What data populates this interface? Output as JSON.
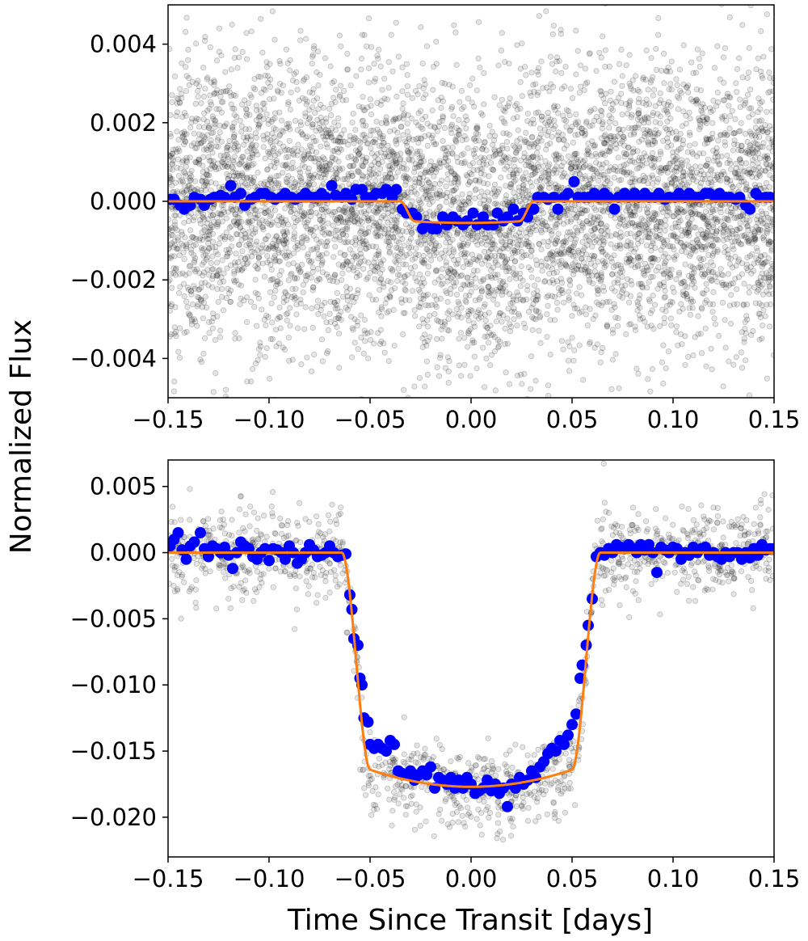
{
  "figure": {
    "ylabel": "Normalized Flux",
    "xlabel": "Time Since Transit [days]"
  },
  "chart_data": [
    {
      "type": "scatter",
      "panel": "top",
      "xlim": [
        -0.15,
        0.15
      ],
      "ylim": [
        -0.005,
        0.005
      ],
      "grid": false,
      "legend": "none",
      "x_ticks": [
        -0.15,
        -0.1,
        -0.05,
        0.0,
        0.05,
        0.1,
        0.15
      ],
      "x_tick_labels": [
        "−0.15",
        "−0.10",
        "−0.05",
        "0.00",
        "0.05",
        "0.10",
        "0.15"
      ],
      "y_ticks": [
        0.004,
        0.002,
        0.0,
        -0.002,
        -0.004
      ],
      "y_tick_labels": [
        "0.004",
        "0.002",
        "0.000",
        "−0.002",
        "−0.004"
      ],
      "colors": {
        "raw": "#000000",
        "binned": "#0000ff",
        "model": "#ff7f0e"
      },
      "raw_scatter": {
        "n_points": 6000,
        "sigma": 0.0018
      },
      "model": {
        "transit_start": -0.035,
        "transit_end": 0.031,
        "ingress_duration": 0.007,
        "depth": 0.00055
      },
      "binned": [
        [
          -0.149,
          5e-05
        ],
        [
          -0.147,
          5e-05
        ],
        [
          -0.144,
          -0.0001
        ],
        [
          -0.142,
          -0.0002
        ],
        [
          -0.139,
          -0.0001
        ],
        [
          -0.137,
          0.0001
        ],
        [
          -0.134,
          5e-05
        ],
        [
          -0.132,
          -0.0001
        ],
        [
          -0.129,
          5e-05
        ],
        [
          -0.127,
          0.0001
        ],
        [
          -0.124,
          0.00015
        ],
        [
          -0.122,
          0.0001
        ],
        [
          -0.119,
          0.0004
        ],
        [
          -0.117,
          0.0001
        ],
        [
          -0.114,
          0.0002
        ],
        [
          -0.112,
          -0.0001
        ],
        [
          -0.109,
          5e-05
        ],
        [
          -0.107,
          0.0001
        ],
        [
          -0.104,
          0.0002
        ],
        [
          -0.102,
          0.0002
        ],
        [
          -0.099,
          0.0001
        ],
        [
          -0.097,
          5e-05
        ],
        [
          -0.094,
          0.0001
        ],
        [
          -0.092,
          0.0002
        ],
        [
          -0.089,
          0.0001
        ],
        [
          -0.087,
          5e-05
        ],
        [
          -0.084,
          0.0001
        ],
        [
          -0.082,
          0.0002
        ],
        [
          -0.079,
          0.0001
        ],
        [
          -0.077,
          0.0001
        ],
        [
          -0.074,
          0.0002
        ],
        [
          -0.072,
          0.0001
        ],
        [
          -0.069,
          0.0004
        ],
        [
          -0.067,
          0.00015
        ],
        [
          -0.064,
          0.0001
        ],
        [
          -0.062,
          0.0002
        ],
        [
          -0.059,
          5e-05
        ],
        [
          -0.057,
          0.0003
        ],
        [
          -0.054,
          0.0003
        ],
        [
          -0.052,
          0.0001
        ],
        [
          -0.049,
          0.0001
        ],
        [
          -0.047,
          0.0002
        ],
        [
          -0.044,
          0.0002
        ],
        [
          -0.042,
          0.0003
        ],
        [
          -0.039,
          0.0001
        ],
        [
          -0.037,
          0.0003
        ],
        [
          -0.034,
          -0.0002
        ],
        [
          -0.032,
          -0.0003
        ],
        [
          -0.029,
          -0.0003
        ],
        [
          -0.027,
          -0.0004
        ],
        [
          -0.024,
          -0.0007
        ],
        [
          -0.022,
          -0.0006
        ],
        [
          -0.019,
          -0.0007
        ],
        [
          -0.017,
          -0.0007
        ],
        [
          -0.014,
          -0.0004
        ],
        [
          -0.012,
          -0.0006
        ],
        [
          -0.009,
          -0.0004
        ],
        [
          -0.007,
          -0.0005
        ],
        [
          -0.004,
          -0.0006
        ],
        [
          -0.002,
          -0.0005
        ],
        [
          0.001,
          -0.0003
        ],
        [
          0.003,
          -0.0006
        ],
        [
          0.006,
          -0.0004
        ],
        [
          0.008,
          -0.0006
        ],
        [
          0.011,
          -0.0006
        ],
        [
          0.013,
          -0.0003
        ],
        [
          0.016,
          -0.0005
        ],
        [
          0.018,
          -0.0004
        ],
        [
          0.021,
          -0.0002
        ],
        [
          0.023,
          -0.0005
        ],
        [
          0.026,
          -0.0003
        ],
        [
          0.028,
          -0.0004
        ],
        [
          0.031,
          -0.0002
        ],
        [
          0.033,
          0.0001
        ],
        [
          0.036,
          0.0001
        ],
        [
          0.038,
          5e-05
        ],
        [
          0.041,
          0.0001
        ],
        [
          0.043,
          -0.0002
        ],
        [
          0.046,
          0.0001
        ],
        [
          0.048,
          0.0002
        ],
        [
          0.051,
          0.0005
        ],
        [
          0.053,
          0.0001
        ],
        [
          0.056,
          0.0001
        ],
        [
          0.058,
          0.0001
        ],
        [
          0.061,
          0.0002
        ],
        [
          0.063,
          0.0001
        ],
        [
          0.066,
          0.0002
        ],
        [
          0.068,
          0.0001
        ],
        [
          0.071,
          -0.0002
        ],
        [
          0.073,
          0.0001
        ],
        [
          0.076,
          0.0002
        ],
        [
          0.078,
          0.0001
        ],
        [
          0.081,
          0.0002
        ],
        [
          0.083,
          0.0001
        ],
        [
          0.086,
          0.0002
        ],
        [
          0.088,
          0.0001
        ],
        [
          0.091,
          0.0001
        ],
        [
          0.093,
          0.0002
        ],
        [
          0.096,
          5e-05
        ],
        [
          0.098,
          0.0001
        ],
        [
          0.101,
          0.0001
        ],
        [
          0.103,
          0.0002
        ],
        [
          0.106,
          0.0001
        ],
        [
          0.108,
          0.0002
        ],
        [
          0.111,
          0.0001
        ],
        [
          0.113,
          0.0001
        ],
        [
          0.116,
          0.0002
        ],
        [
          0.118,
          0.0002
        ],
        [
          0.121,
          0.0001
        ],
        [
          0.123,
          0.0002
        ],
        [
          0.126,
          0.0001
        ],
        [
          0.128,
          0.0001
        ],
        [
          0.131,
          5e-05
        ],
        [
          0.133,
          0.0001
        ],
        [
          0.136,
          -0.0001
        ],
        [
          0.138,
          -0.0002
        ],
        [
          0.141,
          0.0002
        ],
        [
          0.143,
          0.0001
        ],
        [
          0.146,
          0.0001
        ],
        [
          0.148,
          0.0001
        ]
      ]
    },
    {
      "type": "scatter",
      "panel": "bottom",
      "xlim": [
        -0.15,
        0.15
      ],
      "ylim": [
        -0.023,
        0.007
      ],
      "grid": false,
      "legend": "none",
      "x_ticks": [
        -0.15,
        -0.1,
        -0.05,
        0.0,
        0.05,
        0.1,
        0.15
      ],
      "x_tick_labels": [
        "−0.15",
        "−0.10",
        "−0.05",
        "0.00",
        "0.05",
        "0.10",
        "0.15"
      ],
      "y_ticks": [
        0.005,
        0.0,
        -0.005,
        -0.01,
        -0.015,
        -0.02
      ],
      "y_tick_labels": [
        "0.005",
        "0.000",
        "−0.005",
        "−0.010",
        "−0.015",
        "−0.020"
      ],
      "colors": {
        "raw": "#000000",
        "binned": "#0000ff",
        "model": "#ff7f0e"
      },
      "raw_scatter": {
        "n_points": 1300,
        "sigma": 0.0017
      },
      "model": {
        "transit_start": -0.064,
        "transit_end": 0.064,
        "ingress_duration": 0.014,
        "depth": 0.0177
      },
      "binned": [
        [
          -0.149,
          0.0005
        ],
        [
          -0.147,
          0.001
        ],
        [
          -0.145,
          0.0015
        ],
        [
          -0.143,
          0.0002
        ],
        [
          -0.141,
          -0.0005
        ],
        [
          -0.139,
          0.0005
        ],
        [
          -0.137,
          0.0008
        ],
        [
          -0.134,
          0.0015
        ],
        [
          -0.132,
          0.0003
        ],
        [
          -0.13,
          -0.0003
        ],
        [
          -0.128,
          0.0005
        ],
        [
          -0.126,
          0.0003
        ],
        [
          -0.124,
          0.0
        ],
        [
          -0.122,
          0.0004
        ],
        [
          -0.12,
          -0.0002
        ],
        [
          -0.118,
          -0.0012
        ],
        [
          -0.116,
          0.0
        ],
        [
          -0.114,
          0.0008
        ],
        [
          -0.112,
          0.0005
        ],
        [
          -0.11,
          0.0003
        ],
        [
          -0.108,
          -0.0003
        ],
        [
          -0.106,
          -0.0005
        ],
        [
          -0.104,
          0.0
        ],
        [
          -0.102,
          0.0003
        ],
        [
          -0.1,
          -0.0006
        ],
        [
          -0.098,
          0.0003
        ],
        [
          -0.096,
          0.0002
        ],
        [
          -0.094,
          0.0
        ],
        [
          -0.092,
          -0.0005
        ],
        [
          -0.09,
          0.0005
        ],
        [
          -0.088,
          0.0
        ],
        [
          -0.086,
          -0.0008
        ],
        [
          -0.084,
          -0.0005
        ],
        [
          -0.082,
          0.0
        ],
        [
          -0.08,
          0.0006
        ],
        [
          -0.078,
          0.0002
        ],
        [
          -0.076,
          -0.0003
        ],
        [
          -0.074,
          -0.0002
        ],
        [
          -0.072,
          0.0
        ],
        [
          -0.07,
          0.0005
        ],
        [
          -0.068,
          0.0
        ],
        [
          -0.066,
          -0.0003
        ],
        [
          -0.064,
          -0.0002
        ],
        [
          -0.062,
          -0.0001
        ],
        [
          -0.06,
          -0.0032
        ],
        [
          -0.059,
          -0.0043
        ],
        [
          -0.058,
          -0.0065
        ],
        [
          -0.056,
          -0.007
        ],
        [
          -0.055,
          -0.0095
        ],
        [
          -0.054,
          -0.01
        ],
        [
          -0.053,
          -0.0125
        ],
        [
          -0.051,
          -0.0128
        ],
        [
          -0.05,
          -0.0145
        ],
        [
          -0.048,
          -0.0148
        ],
        [
          -0.046,
          -0.0145
        ],
        [
          -0.044,
          -0.0148
        ],
        [
          -0.042,
          -0.015
        ],
        [
          -0.04,
          -0.0142
        ],
        [
          -0.038,
          -0.0145
        ],
        [
          -0.036,
          -0.0165
        ],
        [
          -0.034,
          -0.0167
        ],
        [
          -0.032,
          -0.0168
        ],
        [
          -0.03,
          -0.0165
        ],
        [
          -0.028,
          -0.0172
        ],
        [
          -0.026,
          -0.0168
        ],
        [
          -0.024,
          -0.0165
        ],
        [
          -0.022,
          -0.0168
        ],
        [
          -0.02,
          -0.0162
        ],
        [
          -0.018,
          -0.0178
        ],
        [
          -0.016,
          -0.017
        ],
        [
          -0.014,
          -0.0172
        ],
        [
          -0.012,
          -0.0175
        ],
        [
          -0.01,
          -0.017
        ],
        [
          -0.008,
          -0.0178
        ],
        [
          -0.006,
          -0.0172
        ],
        [
          -0.004,
          -0.0178
        ],
        [
          -0.002,
          -0.017
        ],
        [
          0.0,
          -0.0175
        ],
        [
          0.002,
          -0.0182
        ],
        [
          0.004,
          -0.018
        ],
        [
          0.006,
          -0.0178
        ],
        [
          0.008,
          -0.0172
        ],
        [
          0.01,
          -0.018
        ],
        [
          0.012,
          -0.0175
        ],
        [
          0.014,
          -0.0182
        ],
        [
          0.016,
          -0.0178
        ],
        [
          0.018,
          -0.0192
        ],
        [
          0.02,
          -0.0175
        ],
        [
          0.022,
          -0.0178
        ],
        [
          0.024,
          -0.017
        ],
        [
          0.026,
          -0.0175
        ],
        [
          0.028,
          -0.0172
        ],
        [
          0.03,
          -0.0165
        ],
        [
          0.032,
          -0.017
        ],
        [
          0.034,
          -0.0162
        ],
        [
          0.036,
          -0.0158
        ],
        [
          0.038,
          -0.0152
        ],
        [
          0.04,
          -0.0148
        ],
        [
          0.042,
          -0.015
        ],
        [
          0.044,
          -0.0142
        ],
        [
          0.046,
          -0.0145
        ],
        [
          0.048,
          -0.0138
        ],
        [
          0.05,
          -0.013
        ],
        [
          0.052,
          -0.0122
        ],
        [
          0.054,
          -0.0095
        ],
        [
          0.055,
          -0.0085
        ],
        [
          0.057,
          -0.007
        ],
        [
          0.058,
          -0.0055
        ],
        [
          0.06,
          -0.0035
        ],
        [
          0.062,
          -0.0003
        ],
        [
          0.064,
          0.0
        ],
        [
          0.066,
          -0.0002
        ],
        [
          0.068,
          0.0003
        ],
        [
          0.07,
          0.0
        ],
        [
          0.072,
          0.0006
        ],
        [
          0.074,
          0.0004
        ],
        [
          0.076,
          0.0003
        ],
        [
          0.078,
          0.0006
        ],
        [
          0.08,
          0.0003
        ],
        [
          0.082,
          0.0
        ],
        [
          0.084,
          0.0006
        ],
        [
          0.086,
          0.0002
        ],
        [
          0.088,
          0.0006
        ],
        [
          0.09,
          0.0
        ],
        [
          0.092,
          -0.0015
        ],
        [
          0.094,
          0.0004
        ],
        [
          0.096,
          0.0002
        ],
        [
          0.098,
          0.0
        ],
        [
          0.1,
          0.0004
        ],
        [
          0.102,
          0.0003
        ],
        [
          0.104,
          -0.0005
        ],
        [
          0.106,
          0.0
        ],
        [
          0.108,
          -0.0002
        ],
        [
          0.11,
          0.0004
        ],
        [
          0.112,
          0.0
        ],
        [
          0.114,
          0.0003
        ],
        [
          0.116,
          0.0004
        ],
        [
          0.118,
          -0.0002
        ],
        [
          0.12,
          0.0
        ],
        [
          0.122,
          -0.0003
        ],
        [
          0.124,
          -0.0005
        ],
        [
          0.126,
          0.0
        ],
        [
          0.128,
          -0.0003
        ],
        [
          0.13,
          0.0
        ],
        [
          0.132,
          0.0
        ],
        [
          0.134,
          -0.0005
        ],
        [
          0.136,
          0.0
        ],
        [
          0.138,
          -0.0004
        ],
        [
          0.14,
          0.0003
        ],
        [
          0.142,
          -0.0002
        ],
        [
          0.144,
          0.0006
        ],
        [
          0.146,
          0.0002
        ],
        [
          0.148,
          0.0003
        ],
        [
          0.15,
          0.0003
        ]
      ]
    }
  ]
}
